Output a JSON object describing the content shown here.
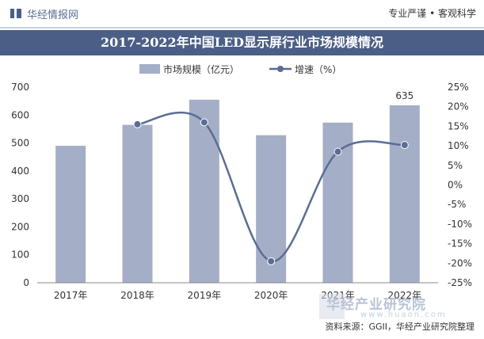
{
  "header": {
    "brand": "华经情报网",
    "slogan": "专业严谨 • 客观科学"
  },
  "title": "2017-2022年中国LED显示屏行业市场规模情况",
  "source": "资料来源：GGII，华经产业研究院整理",
  "watermark": {
    "name": "华经产业研究院",
    "url": "www.huaon.com"
  },
  "colors": {
    "bar": "#a4aec6",
    "line": "#5a6d93",
    "title_bg": "#4b5f86"
  },
  "chart_data": {
    "type": "bar",
    "categories": [
      "2017年",
      "2018年",
      "2019年",
      "2020年",
      "2021年",
      "2022年"
    ],
    "series": [
      {
        "name": "市场规模（亿元）",
        "type": "bar",
        "axis": "left",
        "values": [
          490,
          565,
          655,
          528,
          573,
          635
        ]
      },
      {
        "name": "增速（%）",
        "type": "line",
        "axis": "right",
        "values": [
          null,
          15.5,
          16.0,
          -19.5,
          8.5,
          10.2
        ]
      }
    ],
    "data_labels": [
      {
        "category": "2022年",
        "text": "635"
      }
    ],
    "y_left": {
      "ticks": [
        "0",
        "100",
        "200",
        "300",
        "400",
        "500",
        "600",
        "700"
      ],
      "range": [
        0,
        700
      ]
    },
    "y_right": {
      "ticks": [
        "-25%",
        "-20%",
        "-15%",
        "-10%",
        "-5%",
        "0%",
        "5%",
        "10%",
        "15%",
        "20%",
        "25%"
      ],
      "range": [
        -25,
        25
      ]
    },
    "legend_position": "top-center",
    "grid": false
  }
}
